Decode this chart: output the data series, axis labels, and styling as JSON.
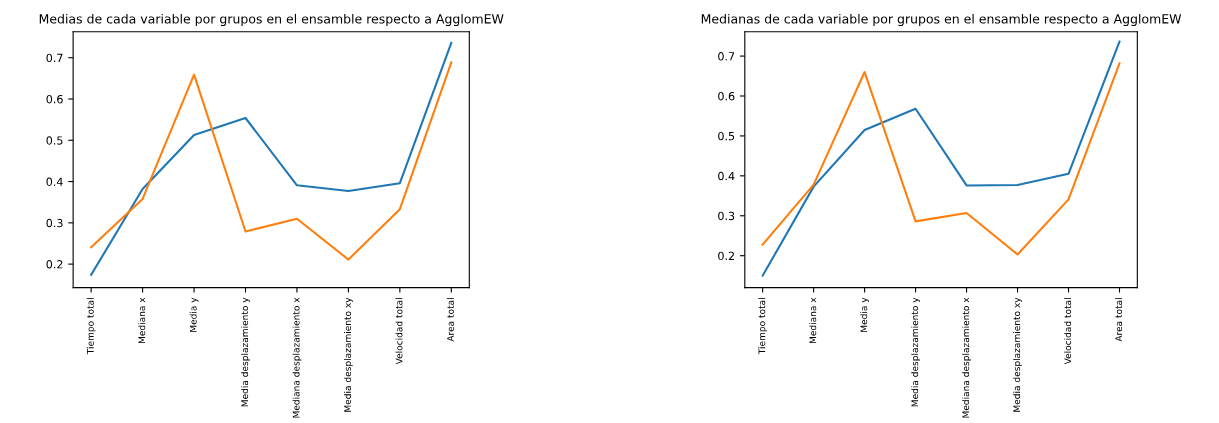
{
  "chart_data": [
    {
      "type": "line",
      "title": "Medias de cada variable por grupos en el ensamble respecto a AgglomEW",
      "categories": [
        "Tiempo total",
        "Mediana x",
        "Media y",
        "Media desplazamiento y",
        "Mediana desplazamiento x",
        "Media desplazamiento xy",
        "Velocidad total",
        "Area total"
      ],
      "series": [
        {
          "color": "#1f77b4",
          "values": [
            0.174,
            0.382,
            0.513,
            0.554,
            0.391,
            0.377,
            0.396,
            0.736
          ]
        },
        {
          "color": "#ff7f0e",
          "values": [
            0.241,
            0.358,
            0.659,
            0.279,
            0.31,
            0.211,
            0.333,
            0.689
          ]
        }
      ],
      "ylim": [
        0.143,
        0.763
      ],
      "yticks": [
        0.2,
        0.3,
        0.4,
        0.5,
        0.6,
        0.7
      ],
      "grid": false,
      "legend": false
    },
    {
      "type": "line",
      "title": "Medianas de cada variable por grupos en el ensamble respecto a AgglomEW",
      "categories": [
        "Tiempo total",
        "Mediana x",
        "Media y",
        "Media desplazamiento y",
        "Mediana desplazamiento x",
        "Media desplazamiento xy",
        "Velocidad total",
        "Area total"
      ],
      "series": [
        {
          "color": "#1f77b4",
          "values": [
            0.15,
            0.373,
            0.515,
            0.568,
            0.376,
            0.377,
            0.405,
            0.736
          ]
        },
        {
          "color": "#ff7f0e",
          "values": [
            0.228,
            0.378,
            0.66,
            0.286,
            0.307,
            0.203,
            0.341,
            0.682
          ]
        }
      ],
      "ylim": [
        0.12,
        0.761
      ],
      "yticks": [
        0.2,
        0.3,
        0.4,
        0.5,
        0.6,
        0.7
      ],
      "grid": false,
      "legend": false
    }
  ]
}
